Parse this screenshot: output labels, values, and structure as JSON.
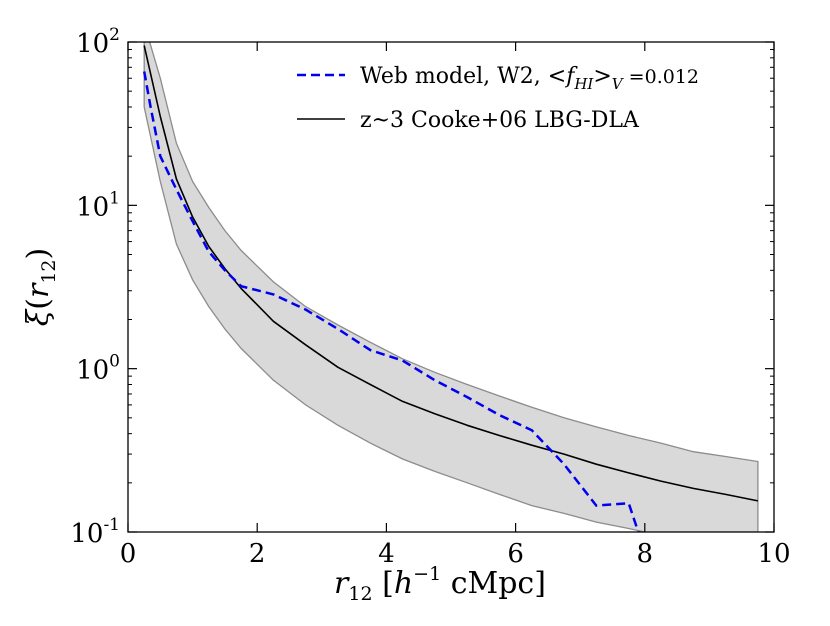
{
  "colors": {
    "model_line": "#0000ee",
    "data_line": "#000000",
    "band_fill": "#d9d9d9",
    "band_edge": "#8c8c8c"
  },
  "chart_data": {
    "type": "line",
    "xlabel": "r_12 [h^-1 cMpc]",
    "ylabel": "ξ(r_12)",
    "xlim": [
      0,
      10
    ],
    "ylim": [
      0.1,
      100
    ],
    "yscale": "log",
    "grid": false,
    "legend_position": "top-right",
    "x_ticks": [
      "0",
      "2",
      "4",
      "6",
      "8",
      "10"
    ],
    "y_ticks": [
      {
        "value": 0.1,
        "base": "10",
        "exp": "-1"
      },
      {
        "value": 1,
        "base": "10",
        "exp": "0"
      },
      {
        "value": 10,
        "base": "10",
        "exp": "1"
      },
      {
        "value": 100,
        "base": "10",
        "exp": "2"
      }
    ],
    "series": [
      {
        "name": "Web model, W2, <f_HI>_V =0.012",
        "style": "dashed",
        "x": [
          0.25,
          0.35,
          0.5,
          0.75,
          1.0,
          1.25,
          1.5,
          1.75,
          2.25,
          2.75,
          3.25,
          3.75,
          4.25,
          4.75,
          5.25,
          5.75,
          6.25,
          6.75,
          7.25,
          7.75,
          7.9
        ],
        "y": [
          66,
          40,
          20,
          12.5,
          8.0,
          5.2,
          4.0,
          3.2,
          2.85,
          2.3,
          1.75,
          1.3,
          1.12,
          0.85,
          0.67,
          0.52,
          0.42,
          0.26,
          0.145,
          0.15,
          0.1
        ]
      },
      {
        "name": "z~3 Cooke+06 LBG-DLA",
        "style": "solid",
        "x": [
          0.25,
          0.5,
          0.75,
          1.0,
          1.25,
          1.5,
          1.75,
          2.25,
          2.75,
          3.25,
          3.75,
          4.25,
          4.75,
          5.25,
          5.75,
          6.25,
          6.75,
          7.25,
          7.75,
          8.25,
          8.75,
          9.25,
          9.75
        ],
        "y": [
          95,
          35,
          14.5,
          8.5,
          5.6,
          4.1,
          3.1,
          1.95,
          1.4,
          1.02,
          0.8,
          0.63,
          0.53,
          0.45,
          0.39,
          0.34,
          0.3,
          0.26,
          0.23,
          0.205,
          0.185,
          0.17,
          0.155
        ]
      }
    ],
    "band": {
      "x": [
        0.25,
        0.5,
        0.75,
        1.0,
        1.25,
        1.5,
        1.75,
        2.25,
        2.75,
        3.25,
        3.75,
        4.25,
        4.75,
        5.25,
        5.75,
        6.25,
        6.75,
        7.25,
        7.75,
        8.25,
        8.75,
        9.25,
        9.75
      ],
      "upper": [
        130,
        60,
        24,
        14,
        9.7,
        7.0,
        5.3,
        3.4,
        2.4,
        1.85,
        1.45,
        1.15,
        0.95,
        0.8,
        0.68,
        0.58,
        0.5,
        0.44,
        0.39,
        0.35,
        0.31,
        0.29,
        0.27
      ],
      "lower": [
        40,
        14,
        5.8,
        3.5,
        2.4,
        1.75,
        1.33,
        0.85,
        0.6,
        0.45,
        0.35,
        0.28,
        0.235,
        0.2,
        0.17,
        0.145,
        0.13,
        0.115,
        0.105,
        0.095,
        0.085,
        0.078,
        0.07
      ]
    }
  }
}
